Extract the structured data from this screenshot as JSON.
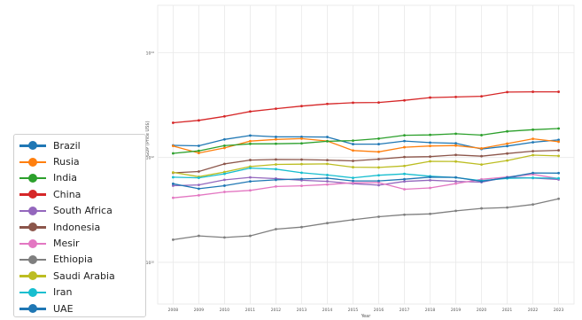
{
  "chart_data": {
    "type": "line",
    "title": "",
    "xlabel": "Year",
    "ylabel": "GDP (Price US$)",
    "yscale": "log",
    "grid": true,
    "legend_position": "lower-left outside",
    "x": [
      2008,
      2009,
      2010,
      2011,
      2012,
      2013,
      2014,
      2015,
      2016,
      2017,
      2018,
      2019,
      2020,
      2021,
      2022,
      2023
    ],
    "xtick_labels": [
      "2008",
      "2009",
      "2010",
      "2011",
      "2012",
      "2013",
      "2014",
      "2015",
      "2016",
      "2017",
      "2018",
      "2019",
      "2020",
      "2021",
      "2022",
      "2023"
    ],
    "yticks": [
      {
        "value": 10000000000.0,
        "label": "10¹⁰"
      },
      {
        "value": 1000000000000.0,
        "label": "10¹²"
      },
      {
        "value": 100000000000000.0,
        "label": "10¹⁴"
      }
    ],
    "ylim": [
      1600000000.0,
      800000000000000.0
    ],
    "series": [
      {
        "name": "Brazil",
        "color": "#1f77b4",
        "values": [
          1700000000000.0,
          1670000000000.0,
          2210000000000.0,
          2620000000000.0,
          2470000000000.0,
          2470000000000.0,
          2460000000000.0,
          1800000000000.0,
          1800000000000.0,
          2060000000000.0,
          1920000000000.0,
          1870000000000.0,
          1450000000000.0,
          1650000000000.0,
          1950000000000.0,
          2170000000000.0
        ]
      },
      {
        "name": "Rusia",
        "color": "#ff7f0e",
        "values": [
          1660000000000.0,
          1220000000000.0,
          1520000000000.0,
          2050000000000.0,
          2210000000000.0,
          2290000000000.0,
          2060000000000.0,
          1360000000000.0,
          1280000000000.0,
          1570000000000.0,
          1660000000000.0,
          1690000000000.0,
          1490000000000.0,
          1840000000000.0,
          2270000000000.0,
          2000000000000.0
        ]
      },
      {
        "name": "India",
        "color": "#2ca02c",
        "values": [
          1200000000000.0,
          1340000000000.0,
          1680000000000.0,
          1820000000000.0,
          1830000000000.0,
          1860000000000.0,
          2040000000000.0,
          2100000000000.0,
          2290000000000.0,
          2650000000000.0,
          2700000000000.0,
          2840000000000.0,
          2670000000000.0,
          3150000000000.0,
          3390000000000.0,
          3570000000000.0
        ]
      },
      {
        "name": "China",
        "color": "#d62728",
        "values": [
          4590000000000.0,
          5100000000000.0,
          6090000000000.0,
          7550000000000.0,
          8530000000000.0,
          9570000000000.0,
          10500000000000.0,
          11100000000000.0,
          11200000000000.0,
          12300000000000.0,
          13900000000000.0,
          14300000000000.0,
          14700000000000.0,
          17700000000000.0,
          17900000000000.0,
          17900000000000.0
        ]
      },
      {
        "name": "South Africa",
        "color": "#9467bd",
        "values": [
          290000000000.0,
          300000000000.0,
          375000000000.0,
          417000000000.0,
          396000000000.0,
          367000000000.0,
          351000000000.0,
          317000000000.0,
          296000000000.0,
          349000000000.0,
          368000000000.0,
          351000000000.0,
          338000000000.0,
          420000000000.0,
          406000000000.0,
          380000000000.0
        ]
      },
      {
        "name": "Indonesia",
        "color": "#8c564b",
        "values": [
          510000000000.0,
          540000000000.0,
          755000000000.0,
          893000000000.0,
          918000000000.0,
          913000000000.0,
          891000000000.0,
          861000000000.0,
          932000000000.0,
          1020000000000.0,
          1040000000000.0,
          1120000000000.0,
          1060000000000.0,
          1190000000000.0,
          1320000000000.0,
          1370000000000.0
        ]
      },
      {
        "name": "Mesir",
        "color": "#e377c2",
        "values": [
          170000000000.0,
          190000000000.0,
          220000000000.0,
          236000000000.0,
          280000000000.0,
          288000000000.0,
          305000000000.0,
          329000000000.0,
          332000000000.0,
          248000000000.0,
          263000000000.0,
          318000000000.0,
          383000000000.0,
          425000000000.0,
          477000000000.0,
          396000000000.0
        ]
      },
      {
        "name": "Ethiopia",
        "color": "#7f7f7f",
        "values": [
          27000000000.0,
          32000000000.0,
          29800000000.0,
          32000000000.0,
          43000000000.0,
          47000000000.0,
          56000000000.0,
          65000000000.0,
          74000000000.0,
          81000000000.0,
          84000000000.0,
          96000000000.0,
          107000000000.0,
          111000000000.0,
          127000000000.0,
          163000000000.0
        ]
      },
      {
        "name": "Saudi Arabia",
        "color": "#bcbd22",
        "values": [
          520000000000.0,
          430000000000.0,
          528000000000.0,
          671000000000.0,
          736000000000.0,
          747000000000.0,
          756000000000.0,
          654000000000.0,
          645000000000.0,
          689000000000.0,
          846000000000.0,
          838000000000.0,
          734000000000.0,
          874000000000.0,
          1110000000000.0,
          1070000000000.0
        ]
      },
      {
        "name": "Iran",
        "color": "#17becf",
        "values": [
          420000000000.0,
          410000000000.0,
          487000000000.0,
          628000000000.0,
          599000000000.0,
          512000000000.0,
          463000000000.0,
          409000000000.0,
          458000000000.0,
          486000000000.0,
          440000000000.0,
          415000000000.0,
          360000000000.0,
          400000000000.0,
          410000000000.0,
          400000000000.0
        ]
      },
      {
        "name": "UAE",
        "color": "#1f77b4",
        "values": [
          315000000000.0,
          254000000000.0,
          290000000000.0,
          350000000000.0,
          374000000000.0,
          390000000000.0,
          403000000000.0,
          358000000000.0,
          357000000000.0,
          385000000000.0,
          422000000000.0,
          417000000000.0,
          350000000000.0,
          415000000000.0,
          507000000000.0,
          504000000000.0
        ]
      }
    ]
  }
}
